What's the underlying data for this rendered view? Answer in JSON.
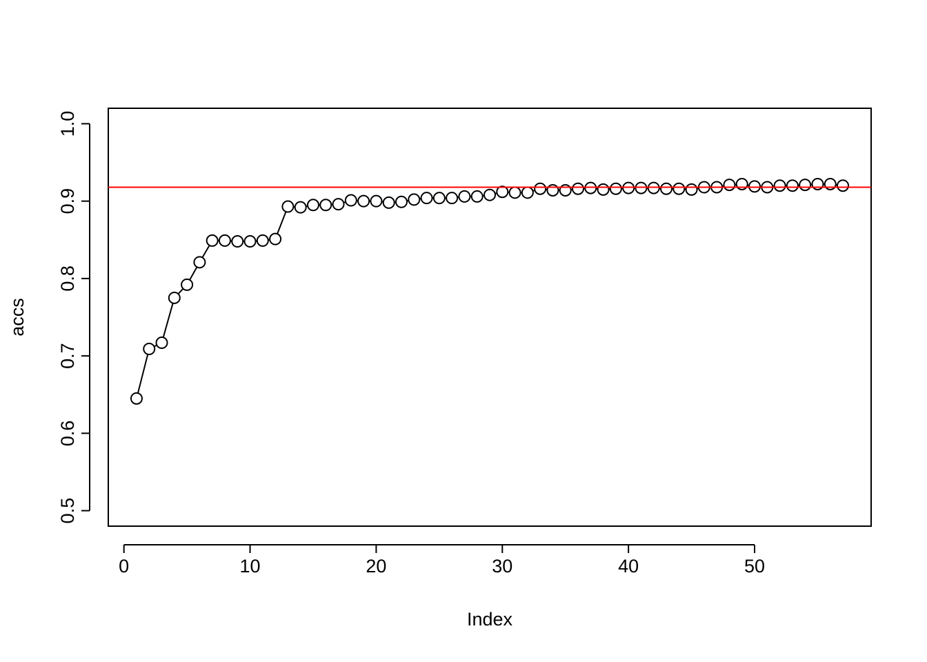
{
  "chart_data": {
    "type": "line",
    "x_label": "Index",
    "y_label": "accs",
    "x": [
      1,
      2,
      3,
      4,
      5,
      6,
      7,
      8,
      9,
      10,
      11,
      12,
      13,
      14,
      15,
      16,
      17,
      18,
      19,
      20,
      21,
      22,
      23,
      24,
      25,
      26,
      27,
      28,
      29,
      30,
      31,
      32,
      33,
      34,
      35,
      36,
      37,
      38,
      39,
      40,
      41,
      42,
      43,
      44,
      45,
      46,
      47,
      48,
      49,
      50,
      51,
      52,
      53,
      54,
      55,
      56,
      57
    ],
    "values": [
      0.645,
      0.709,
      0.717,
      0.775,
      0.792,
      0.821,
      0.849,
      0.849,
      0.848,
      0.848,
      0.849,
      0.851,
      0.893,
      0.892,
      0.895,
      0.895,
      0.896,
      0.901,
      0.9,
      0.9,
      0.898,
      0.899,
      0.902,
      0.904,
      0.904,
      0.904,
      0.906,
      0.906,
      0.908,
      0.912,
      0.911,
      0.911,
      0.916,
      0.914,
      0.914,
      0.916,
      0.917,
      0.915,
      0.916,
      0.917,
      0.917,
      0.917,
      0.916,
      0.916,
      0.915,
      0.918,
      0.918,
      0.921,
      0.922,
      0.919,
      0.918,
      0.92,
      0.92,
      0.921,
      0.922,
      0.922,
      0.92
    ],
    "color": "#000000",
    "markers": "open-circle",
    "hline": {
      "value": 0.918,
      "color": "#ff0000"
    },
    "xlim": [
      -1.24,
      59.24
    ],
    "ylim": [
      0.48,
      1.02
    ],
    "xticks": [
      0,
      10,
      20,
      30,
      40,
      50
    ],
    "yticks": [
      0.5,
      0.6,
      0.7,
      0.8,
      0.9,
      {
        "value": 1,
        "label": "1.0"
      }
    ]
  }
}
